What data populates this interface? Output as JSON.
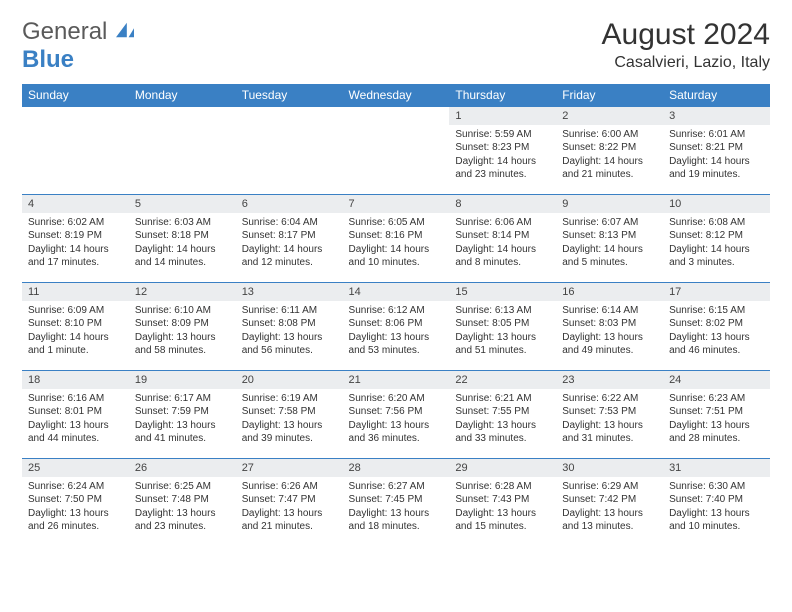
{
  "logo": {
    "general": "General",
    "blue": "Blue"
  },
  "title": "August 2024",
  "location": "Casalvieri, Lazio, Italy",
  "day_headers": [
    "Sunday",
    "Monday",
    "Tuesday",
    "Wednesday",
    "Thursday",
    "Friday",
    "Saturday"
  ],
  "colors": {
    "header_bg": "#3a80c4",
    "header_fg": "#ffffff",
    "daynum_bg": "#ebedef",
    "border": "#3a80c4"
  },
  "weeks": [
    [
      {
        "num": "",
        "lines": []
      },
      {
        "num": "",
        "lines": []
      },
      {
        "num": "",
        "lines": []
      },
      {
        "num": "",
        "lines": []
      },
      {
        "num": "1",
        "lines": [
          "Sunrise: 5:59 AM",
          "Sunset: 8:23 PM",
          "Daylight: 14 hours",
          "and 23 minutes."
        ]
      },
      {
        "num": "2",
        "lines": [
          "Sunrise: 6:00 AM",
          "Sunset: 8:22 PM",
          "Daylight: 14 hours",
          "and 21 minutes."
        ]
      },
      {
        "num": "3",
        "lines": [
          "Sunrise: 6:01 AM",
          "Sunset: 8:21 PM",
          "Daylight: 14 hours",
          "and 19 minutes."
        ]
      }
    ],
    [
      {
        "num": "4",
        "lines": [
          "Sunrise: 6:02 AM",
          "Sunset: 8:19 PM",
          "Daylight: 14 hours",
          "and 17 minutes."
        ]
      },
      {
        "num": "5",
        "lines": [
          "Sunrise: 6:03 AM",
          "Sunset: 8:18 PM",
          "Daylight: 14 hours",
          "and 14 minutes."
        ]
      },
      {
        "num": "6",
        "lines": [
          "Sunrise: 6:04 AM",
          "Sunset: 8:17 PM",
          "Daylight: 14 hours",
          "and 12 minutes."
        ]
      },
      {
        "num": "7",
        "lines": [
          "Sunrise: 6:05 AM",
          "Sunset: 8:16 PM",
          "Daylight: 14 hours",
          "and 10 minutes."
        ]
      },
      {
        "num": "8",
        "lines": [
          "Sunrise: 6:06 AM",
          "Sunset: 8:14 PM",
          "Daylight: 14 hours",
          "and 8 minutes."
        ]
      },
      {
        "num": "9",
        "lines": [
          "Sunrise: 6:07 AM",
          "Sunset: 8:13 PM",
          "Daylight: 14 hours",
          "and 5 minutes."
        ]
      },
      {
        "num": "10",
        "lines": [
          "Sunrise: 6:08 AM",
          "Sunset: 8:12 PM",
          "Daylight: 14 hours",
          "and 3 minutes."
        ]
      }
    ],
    [
      {
        "num": "11",
        "lines": [
          "Sunrise: 6:09 AM",
          "Sunset: 8:10 PM",
          "Daylight: 14 hours",
          "and 1 minute."
        ]
      },
      {
        "num": "12",
        "lines": [
          "Sunrise: 6:10 AM",
          "Sunset: 8:09 PM",
          "Daylight: 13 hours",
          "and 58 minutes."
        ]
      },
      {
        "num": "13",
        "lines": [
          "Sunrise: 6:11 AM",
          "Sunset: 8:08 PM",
          "Daylight: 13 hours",
          "and 56 minutes."
        ]
      },
      {
        "num": "14",
        "lines": [
          "Sunrise: 6:12 AM",
          "Sunset: 8:06 PM",
          "Daylight: 13 hours",
          "and 53 minutes."
        ]
      },
      {
        "num": "15",
        "lines": [
          "Sunrise: 6:13 AM",
          "Sunset: 8:05 PM",
          "Daylight: 13 hours",
          "and 51 minutes."
        ]
      },
      {
        "num": "16",
        "lines": [
          "Sunrise: 6:14 AM",
          "Sunset: 8:03 PM",
          "Daylight: 13 hours",
          "and 49 minutes."
        ]
      },
      {
        "num": "17",
        "lines": [
          "Sunrise: 6:15 AM",
          "Sunset: 8:02 PM",
          "Daylight: 13 hours",
          "and 46 minutes."
        ]
      }
    ],
    [
      {
        "num": "18",
        "lines": [
          "Sunrise: 6:16 AM",
          "Sunset: 8:01 PM",
          "Daylight: 13 hours",
          "and 44 minutes."
        ]
      },
      {
        "num": "19",
        "lines": [
          "Sunrise: 6:17 AM",
          "Sunset: 7:59 PM",
          "Daylight: 13 hours",
          "and 41 minutes."
        ]
      },
      {
        "num": "20",
        "lines": [
          "Sunrise: 6:19 AM",
          "Sunset: 7:58 PM",
          "Daylight: 13 hours",
          "and 39 minutes."
        ]
      },
      {
        "num": "21",
        "lines": [
          "Sunrise: 6:20 AM",
          "Sunset: 7:56 PM",
          "Daylight: 13 hours",
          "and 36 minutes."
        ]
      },
      {
        "num": "22",
        "lines": [
          "Sunrise: 6:21 AM",
          "Sunset: 7:55 PM",
          "Daylight: 13 hours",
          "and 33 minutes."
        ]
      },
      {
        "num": "23",
        "lines": [
          "Sunrise: 6:22 AM",
          "Sunset: 7:53 PM",
          "Daylight: 13 hours",
          "and 31 minutes."
        ]
      },
      {
        "num": "24",
        "lines": [
          "Sunrise: 6:23 AM",
          "Sunset: 7:51 PM",
          "Daylight: 13 hours",
          "and 28 minutes."
        ]
      }
    ],
    [
      {
        "num": "25",
        "lines": [
          "Sunrise: 6:24 AM",
          "Sunset: 7:50 PM",
          "Daylight: 13 hours",
          "and 26 minutes."
        ]
      },
      {
        "num": "26",
        "lines": [
          "Sunrise: 6:25 AM",
          "Sunset: 7:48 PM",
          "Daylight: 13 hours",
          "and 23 minutes."
        ]
      },
      {
        "num": "27",
        "lines": [
          "Sunrise: 6:26 AM",
          "Sunset: 7:47 PM",
          "Daylight: 13 hours",
          "and 21 minutes."
        ]
      },
      {
        "num": "28",
        "lines": [
          "Sunrise: 6:27 AM",
          "Sunset: 7:45 PM",
          "Daylight: 13 hours",
          "and 18 minutes."
        ]
      },
      {
        "num": "29",
        "lines": [
          "Sunrise: 6:28 AM",
          "Sunset: 7:43 PM",
          "Daylight: 13 hours",
          "and 15 minutes."
        ]
      },
      {
        "num": "30",
        "lines": [
          "Sunrise: 6:29 AM",
          "Sunset: 7:42 PM",
          "Daylight: 13 hours",
          "and 13 minutes."
        ]
      },
      {
        "num": "31",
        "lines": [
          "Sunrise: 6:30 AM",
          "Sunset: 7:40 PM",
          "Daylight: 13 hours",
          "and 10 minutes."
        ]
      }
    ]
  ]
}
